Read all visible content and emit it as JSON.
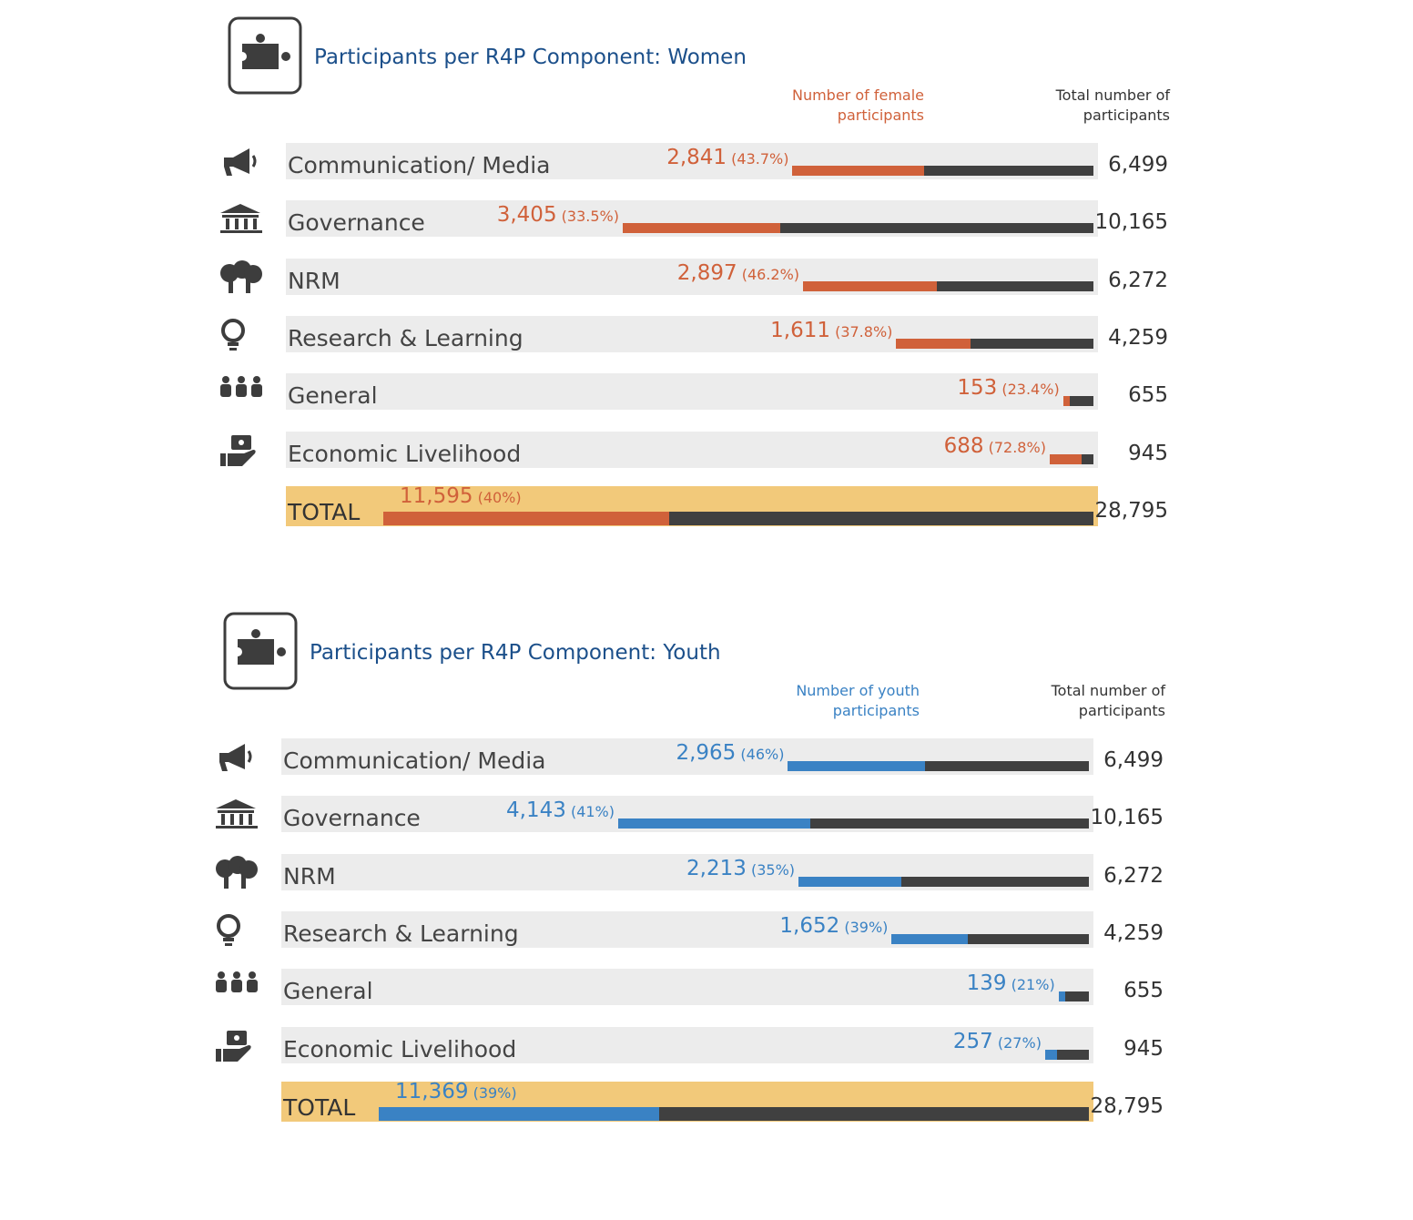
{
  "chart_data": [
    {
      "type": "bar",
      "title": "Participants per R4P Component: Women",
      "categories": [
        "Communication/ Media",
        "Governance",
        "NRM",
        "Research & Learning",
        "General",
        "Economic Livelihood",
        "TOTAL"
      ],
      "series": [
        {
          "name": "Number of female participants",
          "color": "#d0613a",
          "values": [
            2841,
            3405,
            2897,
            1611,
            153,
            688,
            11595
          ],
          "value_labels": [
            "2,841",
            "3,405",
            "2,897",
            "1,611",
            "153",
            "688",
            "11,595"
          ]
        },
        {
          "name": "Total number of participants",
          "color": "#404040",
          "values": [
            6499,
            10165,
            6272,
            4259,
            655,
            945,
            28795
          ],
          "value_labels": [
            "6,499",
            "10,165",
            "6,272",
            "4,259",
            "655",
            "945",
            "28,795"
          ]
        }
      ],
      "shares": {
        "values": [
          43.7,
          33.5,
          46.2,
          37.8,
          23.4,
          72.8,
          40
        ],
        "value_labels": [
          "(43.7%)",
          "(33.5%)",
          "(46.2%)",
          "(37.8%)",
          "(23.4%)",
          "(72.8%)",
          "(40%)"
        ]
      }
    },
    {
      "type": "bar",
      "title": "Participants per R4P Component: Youth",
      "categories": [
        "Communication/ Media",
        "Governance",
        "NRM",
        "Research & Learning",
        "General",
        "Economic Livelihood",
        "TOTAL"
      ],
      "series": [
        {
          "name": "Number of youth participants",
          "color": "#3a82c4",
          "values": [
            2965,
            4143,
            2213,
            1652,
            139,
            257,
            11369
          ],
          "value_labels": [
            "2,965",
            "4,143",
            "2,213",
            "1,652",
            "139",
            "257",
            "11,369"
          ]
        },
        {
          "name": "Total number of participants",
          "color": "#404040",
          "values": [
            6499,
            10165,
            6272,
            4259,
            655,
            945,
            28795
          ],
          "value_labels": [
            "6,499",
            "10,165",
            "6,272",
            "4,259",
            "655",
            "945",
            "28,795"
          ]
        }
      ],
      "shares": {
        "values": [
          46,
          41,
          35,
          39,
          21,
          27,
          39
        ],
        "value_labels": [
          "(46%)",
          "(41%)",
          "(35%)",
          "(39%)",
          "(21%)",
          "(27%)",
          "(39%)"
        ]
      }
    }
  ]
}
